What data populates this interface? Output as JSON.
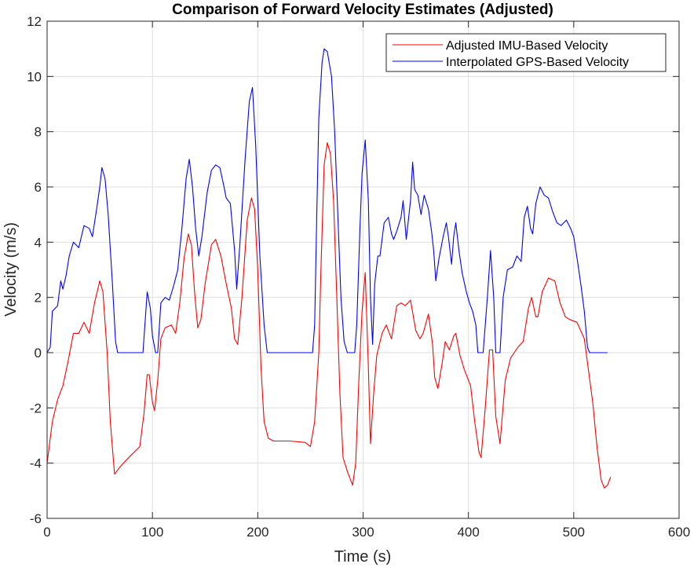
{
  "chart_data": {
    "type": "line",
    "title": "Comparison of Forward Velocity Estimates (Adjusted)",
    "xlabel": "Time (s)",
    "ylabel": "Velocity (m/s)",
    "xlim": [
      0,
      600
    ],
    "ylim": [
      -6,
      12
    ],
    "xticks": [
      0,
      100,
      200,
      300,
      400,
      500,
      600
    ],
    "yticks": [
      -6,
      -4,
      -2,
      0,
      2,
      4,
      6,
      8,
      10,
      12
    ],
    "grid": true,
    "legend_position": "top-right",
    "series": [
      {
        "name": "Adjusted IMU-Based Velocity",
        "color": "#ff0000",
        "x": [
          0,
          5,
          10,
          15,
          20,
          25,
          30,
          35,
          40,
          45,
          50,
          53,
          57,
          60,
          64,
          70,
          80,
          88,
          92,
          95,
          97,
          100,
          102,
          105,
          108,
          112,
          118,
          122,
          126,
          130,
          134,
          137,
          140,
          143,
          146,
          150,
          156,
          160,
          165,
          170,
          175,
          178,
          181,
          185,
          190,
          194,
          197,
          200,
          203,
          206,
          210,
          215,
          230,
          245,
          250,
          254,
          258,
          260,
          263,
          266,
          269,
          272,
          275,
          278,
          281,
          285,
          290,
          293,
          296,
          299,
          302,
          305,
          307,
          310,
          313,
          318,
          322,
          327,
          332,
          336,
          340,
          345,
          350,
          354,
          357,
          362,
          366,
          368,
          371,
          375,
          378,
          382,
          386,
          388,
          392,
          396,
          402,
          406,
          410,
          412,
          416,
          420,
          423,
          426,
          430,
          435,
          440,
          447,
          452,
          457,
          460,
          464,
          466,
          470,
          476,
          482,
          487,
          492,
          496,
          503,
          510,
          518,
          522,
          526,
          529,
          532,
          535
        ],
        "y": [
          -4.0,
          -2.5,
          -1.7,
          -1.2,
          -0.3,
          0.7,
          0.7,
          1.1,
          0.7,
          1.8,
          2.6,
          2.2,
          0,
          -2.5,
          -4.4,
          -4.1,
          -3.7,
          -3.4,
          -2.2,
          -0.8,
          -0.8,
          -1.8,
          -2.1,
          -1.0,
          0.5,
          0.9,
          1.0,
          0.7,
          1.8,
          3.4,
          4.3,
          3.9,
          2.2,
          0.9,
          1.2,
          2.5,
          3.9,
          4.1,
          3.5,
          2.5,
          1.6,
          0.5,
          0.3,
          2.0,
          4.8,
          5.6,
          5.2,
          3.0,
          -0.5,
          -2.5,
          -3.1,
          -3.2,
          -3.2,
          -3.25,
          -3.4,
          -2.5,
          0,
          3.0,
          6.8,
          7.6,
          7.2,
          5.5,
          2.0,
          -1.5,
          -3.8,
          -4.3,
          -4.8,
          -4.0,
          -1.0,
          1.5,
          2.9,
          -0.5,
          -3.3,
          -1.5,
          -0.1,
          0.7,
          1.0,
          0.5,
          1.7,
          1.8,
          1.7,
          1.9,
          0.8,
          0.5,
          0.7,
          1.4,
          0.3,
          -0.9,
          -1.3,
          -0.4,
          0.4,
          0.1,
          0.6,
          0.7,
          -0.1,
          -0.6,
          -1.2,
          -2.5,
          -3.6,
          -3.8,
          -2.0,
          0.1,
          0.1,
          -2.3,
          -3.3,
          -1.0,
          -0.2,
          0.2,
          0.4,
          1.6,
          2.0,
          1.3,
          1.3,
          2.2,
          2.7,
          2.6,
          1.8,
          1.3,
          1.2,
          1.1,
          0.5,
          -1.8,
          -3.4,
          -4.6,
          -4.9,
          -4.8,
          -4.5
        ]
      },
      {
        "name": "Interpolated GPS-Based Velocity",
        "color": "#0000ff",
        "x": [
          0,
          3,
          5,
          10,
          13,
          15,
          18,
          21,
          25,
          30,
          35,
          40,
          43,
          47,
          50,
          52,
          55,
          58,
          62,
          65,
          67,
          91,
          95,
          98,
          100,
          103,
          105,
          108,
          112,
          116,
          120,
          124,
          128,
          132,
          135,
          138,
          141,
          144,
          147,
          152,
          156,
          160,
          164,
          168,
          170,
          174,
          178,
          180,
          183,
          188,
          192,
          195,
          198,
          202,
          206,
          209,
          252,
          254,
          256,
          258,
          261,
          263,
          266,
          270,
          273,
          276,
          279,
          282,
          285,
          292,
          294,
          297,
          299,
          302,
          305,
          307,
          309,
          311,
          314,
          316,
          320,
          324,
          327,
          329,
          332,
          336,
          338,
          341,
          345,
          347,
          349,
          352,
          355,
          358,
          362,
          365,
          367,
          369,
          372,
          376,
          379,
          381,
          384,
          386,
          388,
          391,
          394,
          398,
          401,
          404,
          407,
          409,
          414,
          418,
          421,
          424,
          426,
          430,
          433,
          437,
          442,
          446,
          450,
          453,
          456,
          459,
          461,
          464,
          468,
          472,
          476,
          480,
          484,
          488,
          493,
          497,
          500,
          504,
          507,
          510,
          513,
          515,
          532
        ],
        "y": [
          0,
          0.2,
          1.5,
          1.7,
          2.6,
          2.3,
          2.8,
          3.5,
          4.0,
          3.8,
          4.6,
          4.5,
          4.2,
          5.2,
          6.0,
          6.7,
          6.3,
          5.0,
          2.5,
          0.4,
          0,
          0,
          2.2,
          1.6,
          0.6,
          0,
          0,
          1.8,
          2.0,
          1.9,
          2.4,
          3.0,
          4.5,
          6.3,
          7.0,
          6.0,
          4.5,
          3.5,
          4.2,
          5.8,
          6.6,
          6.8,
          6.7,
          6.0,
          5.6,
          5.4,
          3.7,
          2.3,
          3.9,
          7.0,
          9.1,
          9.6,
          7.5,
          3.5,
          1.0,
          0,
          0,
          1.0,
          5.0,
          8.5,
          10.5,
          11.0,
          10.9,
          10.0,
          8.0,
          5.0,
          2.0,
          0.4,
          0,
          0,
          1.0,
          4.5,
          6.5,
          7.7,
          5.5,
          2.0,
          0.3,
          2.5,
          3.5,
          3.5,
          4.7,
          4.9,
          4.3,
          4.1,
          4.4,
          4.9,
          5.5,
          4.1,
          5.5,
          6.9,
          5.9,
          5.7,
          5.0,
          5.7,
          5.2,
          4.4,
          3.7,
          2.6,
          3.4,
          4.2,
          4.7,
          4.2,
          3.2,
          4.2,
          4.7,
          3.7,
          2.9,
          2.2,
          1.8,
          1.5,
          1.0,
          0,
          0,
          2.0,
          3.7,
          2.0,
          0,
          0,
          2.0,
          3.0,
          3.1,
          3.5,
          3.3,
          4.9,
          5.3,
          4.5,
          4.3,
          5.4,
          6.0,
          5.7,
          5.6,
          5.1,
          4.7,
          4.6,
          4.8,
          4.5,
          4.2,
          3.2,
          2.4,
          1.5,
          0.2,
          0,
          0
        ]
      }
    ]
  }
}
